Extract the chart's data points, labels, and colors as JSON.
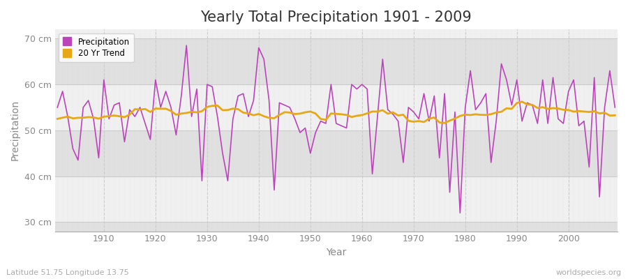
{
  "title": "Yearly Total Precipitation 1901 - 2009",
  "xlabel": "Year",
  "ylabel": "Precipitation",
  "lat_lon_label": "Latitude 51.75 Longitude 13.75",
  "source_label": "worldspecies.org",
  "years": [
    1901,
    1902,
    1903,
    1904,
    1905,
    1906,
    1907,
    1908,
    1909,
    1910,
    1911,
    1912,
    1913,
    1914,
    1915,
    1916,
    1917,
    1918,
    1919,
    1920,
    1921,
    1922,
    1923,
    1924,
    1925,
    1926,
    1927,
    1928,
    1929,
    1930,
    1931,
    1932,
    1933,
    1934,
    1935,
    1936,
    1937,
    1938,
    1939,
    1940,
    1941,
    1942,
    1943,
    1944,
    1945,
    1946,
    1947,
    1948,
    1949,
    1950,
    1951,
    1952,
    1953,
    1954,
    1955,
    1956,
    1957,
    1958,
    1959,
    1960,
    1961,
    1962,
    1963,
    1964,
    1965,
    1966,
    1967,
    1968,
    1969,
    1970,
    1971,
    1972,
    1973,
    1974,
    1975,
    1976,
    1977,
    1978,
    1979,
    1980,
    1981,
    1982,
    1983,
    1984,
    1985,
    1986,
    1987,
    1988,
    1989,
    1990,
    1991,
    1992,
    1993,
    1994,
    1995,
    1996,
    1997,
    1998,
    1999,
    2000,
    2001,
    2002,
    2003,
    2004,
    2005,
    2006,
    2007,
    2008,
    2009
  ],
  "precipitation": [
    55.0,
    58.5,
    53.0,
    46.0,
    43.5,
    55.0,
    56.5,
    52.5,
    44.0,
    61.0,
    52.5,
    55.5,
    56.0,
    47.5,
    54.5,
    53.0,
    55.0,
    51.5,
    48.0,
    61.0,
    55.0,
    58.5,
    55.0,
    49.0,
    57.5,
    68.5,
    53.0,
    59.0,
    39.0,
    60.0,
    59.5,
    53.0,
    45.0,
    39.0,
    52.5,
    57.5,
    58.0,
    53.0,
    56.5,
    68.0,
    65.5,
    56.5,
    37.0,
    56.0,
    55.5,
    55.0,
    52.5,
    49.5,
    50.5,
    45.0,
    49.5,
    52.0,
    51.5,
    60.0,
    51.5,
    51.0,
    50.5,
    60.0,
    59.0,
    60.0,
    59.0,
    40.5,
    53.0,
    65.5,
    54.5,
    53.5,
    52.0,
    43.0,
    55.0,
    54.0,
    52.5,
    58.0,
    52.0,
    57.5,
    44.0,
    58.0,
    36.5,
    54.0,
    32.0,
    55.0,
    63.0,
    54.5,
    56.0,
    58.0,
    43.0,
    52.0,
    64.5,
    61.0,
    55.5,
    61.0,
    52.0,
    56.0,
    55.5,
    51.5,
    61.0,
    51.5,
    61.5,
    52.5,
    51.5,
    58.5,
    61.0,
    51.0,
    52.0,
    42.0,
    61.5,
    35.5,
    55.0,
    63.0,
    55.0
  ],
  "precip_color": "#bb44bb",
  "trend_color": "#e6a817",
  "trend_linewidth": 2.0,
  "precip_linewidth": 1.2,
  "ylim": [
    28,
    72
  ],
  "yticks": [
    30,
    40,
    50,
    60,
    70
  ],
  "ytick_labels": [
    "30 cm",
    "40 cm",
    "50 cm",
    "60 cm",
    "70 cm"
  ],
  "bg_color": "#ffffff",
  "plot_bg_color": "#f0f0f0",
  "band_color_dark": "#e0e0e0",
  "band_color_light": "#f0f0f0",
  "grid_color_v": "#cccccc",
  "title_fontsize": 15,
  "axis_fontsize": 10,
  "tick_fontsize": 9,
  "label_color": "#888888"
}
